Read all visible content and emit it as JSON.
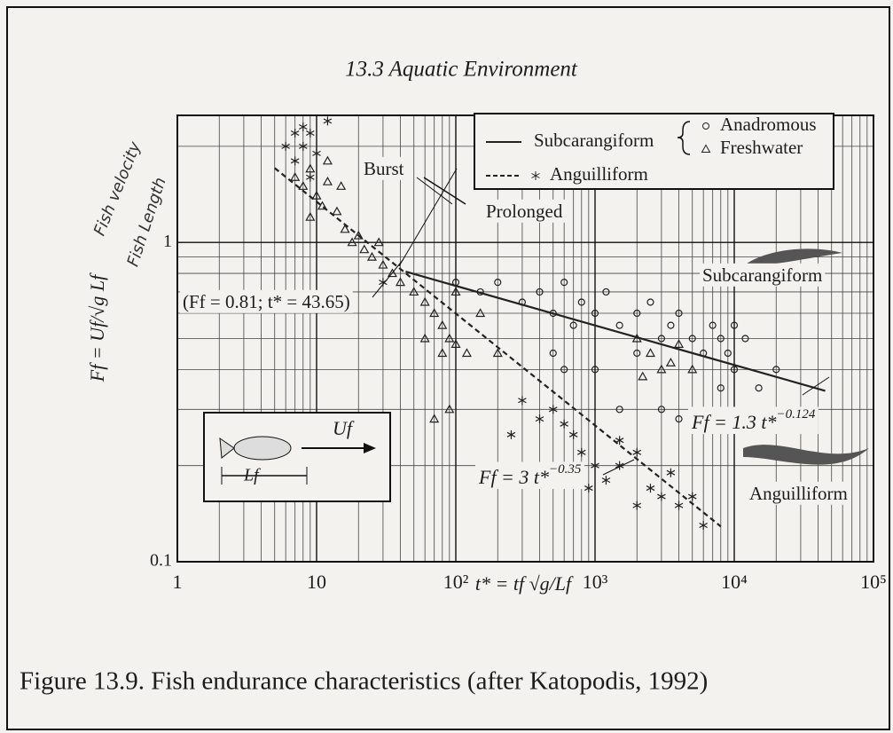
{
  "header": "13.3 Aquatic Environment",
  "caption": "Figure 13.9. Fish endurance characteristics (after Katopodis, 1992)",
  "handwritten": [
    "Fish velocity",
    "Fish Length"
  ],
  "chart_data": {
    "type": "scatter",
    "x_label": "t* = tf √g/Lf",
    "y_label": "Ff = Uf/√g Lf",
    "log_x": true,
    "log_y": true,
    "grid": true,
    "minor_grid": true,
    "xlim": [
      1,
      100000
    ],
    "ylim": [
      0.1,
      2.5
    ],
    "xticks": [
      1,
      10,
      {
        "value": 100,
        "label": "10²"
      },
      {
        "value": 1000,
        "label": "10³"
      },
      {
        "value": 10000,
        "label": "10⁴"
      },
      {
        "value": 100000,
        "label": "10⁵"
      }
    ],
    "yticks": [
      0.1,
      1
    ],
    "legend": "top-right",
    "series": [
      {
        "name": "Subcarangiform",
        "line": "solid",
        "color": "#222222",
        "x": [
          43.65,
          45000
        ],
        "values": [
          0.81,
          0.343
        ]
      },
      {
        "name": "Anadromous",
        "marker": "circle",
        "color": "#222222",
        "x": [
          100,
          150,
          200,
          300,
          400,
          500,
          600,
          700,
          800,
          1000,
          1200,
          1500,
          2000,
          2500,
          3000,
          3500,
          4000,
          5000,
          6000,
          7000,
          8000,
          9000,
          10000,
          12000,
          15000,
          20000,
          1000,
          500,
          1500,
          3000,
          4000,
          8000,
          10000,
          600,
          2000
        ],
        "values": [
          0.75,
          0.7,
          0.75,
          0.65,
          0.7,
          0.6,
          0.75,
          0.55,
          0.65,
          0.6,
          0.7,
          0.55,
          0.6,
          0.65,
          0.5,
          0.55,
          0.6,
          0.5,
          0.45,
          0.55,
          0.5,
          0.45,
          0.4,
          0.5,
          0.35,
          0.4,
          0.4,
          0.45,
          0.3,
          0.3,
          0.28,
          0.35,
          0.55,
          0.4,
          0.45
        ]
      },
      {
        "name": "Freshwater",
        "marker": "triangle",
        "color": "#222222",
        "x": [
          7,
          8,
          9,
          10,
          11,
          12,
          9,
          14,
          16,
          18,
          20,
          22,
          25,
          28,
          30,
          35,
          40,
          50,
          60,
          70,
          80,
          90,
          100,
          120,
          80,
          60,
          100,
          150,
          200,
          70,
          90,
          2000,
          2500,
          3000,
          3500,
          4000,
          5000,
          2200,
          12,
          15
        ],
        "values": [
          1.6,
          1.5,
          1.7,
          1.4,
          1.3,
          1.55,
          1.2,
          1.25,
          1.1,
          1.0,
          1.05,
          0.95,
          0.9,
          1.0,
          0.85,
          0.8,
          0.75,
          0.7,
          0.65,
          0.6,
          0.55,
          0.5,
          0.48,
          0.45,
          0.45,
          0.5,
          0.7,
          0.6,
          0.45,
          0.28,
          0.3,
          0.5,
          0.45,
          0.4,
          0.42,
          0.48,
          0.4,
          0.38,
          1.8,
          1.5
        ]
      },
      {
        "name": "Anguilliform",
        "line": "dashed",
        "marker": "asterisk",
        "color": "#222222",
        "fit_x": [
          5,
          8000
        ],
        "fit_values": [
          1.71,
          0.129
        ],
        "x": [
          6,
          7,
          8,
          9,
          7,
          10,
          8,
          12,
          9,
          30,
          300,
          400,
          500,
          600,
          700,
          800,
          1000,
          1200,
          1500,
          2000,
          2500,
          3000,
          3500,
          4000,
          5000,
          6000,
          2000,
          900,
          250,
          1500
        ],
        "values": [
          2.0,
          2.2,
          2.3,
          2.2,
          1.8,
          1.9,
          2.0,
          2.4,
          1.6,
          0.75,
          0.32,
          0.28,
          0.3,
          0.27,
          0.25,
          0.22,
          0.2,
          0.18,
          0.2,
          0.22,
          0.17,
          0.16,
          0.19,
          0.15,
          0.16,
          0.13,
          0.15,
          0.17,
          0.25,
          0.24
        ]
      }
    ],
    "annotations": {
      "burst": "Burst",
      "prolonged": "Prolonged",
      "intersection": "(Ff = 0.81; t* = 43.65)",
      "subcarangiform": "Subcarangiform",
      "anguilliform": "Anguilliform",
      "sub_formula": {
        "base": "Ff = 1.3 t*",
        "exponent": "−0.124"
      },
      "ang_formula": {
        "base": "Ff = 3 t*",
        "exponent": "−0.35"
      }
    },
    "inset": {
      "velocity": "Uf",
      "length": "Lf"
    }
  }
}
